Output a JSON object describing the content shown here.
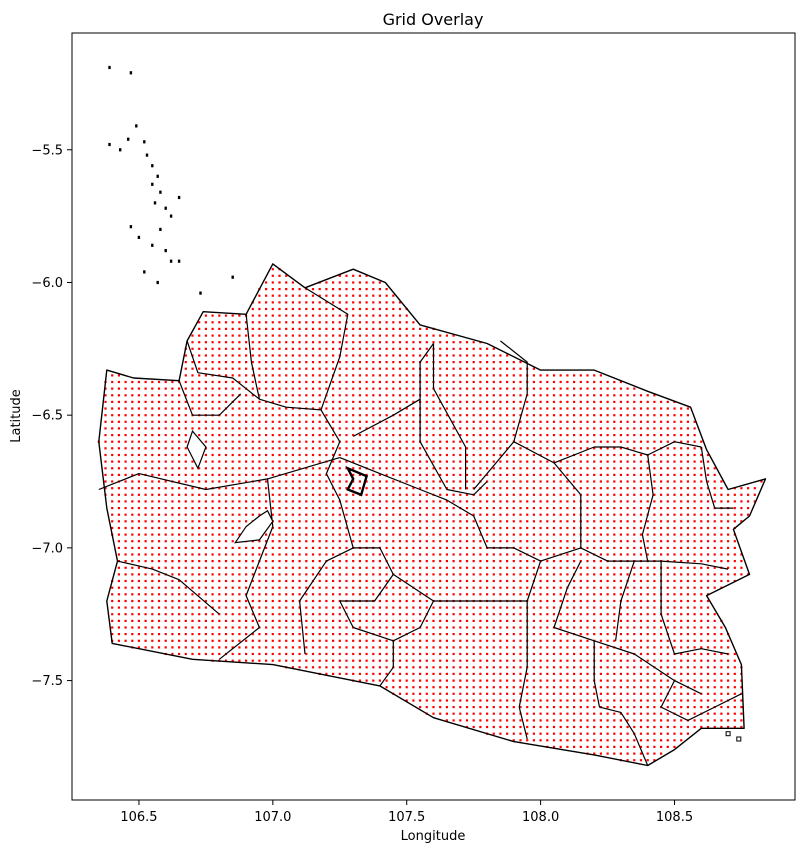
{
  "chart_data": {
    "type": "scatter",
    "title": "Grid Overlay",
    "xlabel": "Longitude",
    "ylabel": "Latitude",
    "xlim": [
      106.25,
      108.95
    ],
    "ylim": [
      -7.95,
      -5.06
    ],
    "xticks": [
      106.5,
      107.0,
      107.5,
      108.0,
      108.5
    ],
    "xtick_labels": [
      "106.5",
      "107.0",
      "107.5",
      "108.0",
      "108.5"
    ],
    "yticks": [
      -5.5,
      -6.0,
      -6.5,
      -7.0,
      -7.5
    ],
    "ytick_labels": [
      "−5.5",
      "−6.0",
      "−6.5",
      "−7.0",
      "−7.5"
    ],
    "grid": false,
    "grid_spacing_deg": 0.025,
    "point_color": "#ff0000",
    "boundary_color": "#000000",
    "outline": [
      [
        106.38,
        -6.33
      ],
      [
        106.48,
        -6.36
      ],
      [
        106.65,
        -6.37
      ],
      [
        106.68,
        -6.22
      ],
      [
        106.74,
        -6.11
      ],
      [
        106.9,
        -6.12
      ],
      [
        107.0,
        -5.93
      ],
      [
        107.12,
        -6.02
      ],
      [
        107.3,
        -5.95
      ],
      [
        107.42,
        -6.0
      ],
      [
        107.55,
        -6.16
      ],
      [
        107.8,
        -6.23
      ],
      [
        108.0,
        -6.33
      ],
      [
        108.2,
        -6.33
      ],
      [
        108.4,
        -6.41
      ],
      [
        108.56,
        -6.47
      ],
      [
        108.62,
        -6.63
      ],
      [
        108.7,
        -6.78
      ],
      [
        108.84,
        -6.74
      ],
      [
        108.78,
        -6.88
      ],
      [
        108.72,
        -6.93
      ],
      [
        108.78,
        -7.1
      ],
      [
        108.62,
        -7.18
      ],
      [
        108.69,
        -7.3
      ],
      [
        108.75,
        -7.44
      ],
      [
        108.76,
        -7.68
      ],
      [
        108.6,
        -7.68
      ],
      [
        108.5,
        -7.76
      ],
      [
        108.4,
        -7.82
      ],
      [
        108.2,
        -7.78
      ],
      [
        107.9,
        -7.73
      ],
      [
        107.6,
        -7.64
      ],
      [
        107.4,
        -7.52
      ],
      [
        107.0,
        -7.44
      ],
      [
        106.7,
        -7.42
      ],
      [
        106.4,
        -7.36
      ],
      [
        106.38,
        -7.2
      ],
      [
        106.42,
        -7.05
      ],
      [
        106.38,
        -6.85
      ],
      [
        106.35,
        -6.6
      ],
      [
        106.38,
        -6.33
      ]
    ],
    "regions": [
      [
        [
          106.68,
          -6.22
        ],
        [
          106.72,
          -6.34
        ],
        [
          106.85,
          -6.36
        ],
        [
          106.95,
          -6.44
        ],
        [
          107.05,
          -6.47
        ]
      ],
      [
        [
          106.65,
          -6.37
        ],
        [
          106.7,
          -6.5
        ],
        [
          106.8,
          -6.5
        ],
        [
          106.88,
          -6.42
        ]
      ],
      [
        [
          106.9,
          -6.12
        ],
        [
          106.92,
          -6.3
        ],
        [
          106.95,
          -6.44
        ]
      ],
      [
        [
          107.12,
          -6.02
        ],
        [
          107.28,
          -6.12
        ],
        [
          107.25,
          -6.28
        ],
        [
          107.18,
          -6.48
        ],
        [
          107.05,
          -6.47
        ]
      ],
      [
        [
          107.18,
          -6.48
        ],
        [
          107.25,
          -6.6
        ],
        [
          107.2,
          -6.72
        ],
        [
          107.25,
          -6.82
        ],
        [
          107.3,
          -7.0
        ],
        [
          107.2,
          -7.05
        ],
        [
          107.1,
          -7.2
        ],
        [
          107.12,
          -7.4
        ]
      ],
      [
        [
          106.35,
          -6.78
        ],
        [
          106.5,
          -6.72
        ],
        [
          106.75,
          -6.78
        ],
        [
          106.98,
          -6.74
        ],
        [
          107.25,
          -6.66
        ]
      ],
      [
        [
          106.98,
          -6.74
        ],
        [
          107.0,
          -6.92
        ],
        [
          106.95,
          -7.05
        ],
        [
          106.9,
          -7.18
        ],
        [
          106.95,
          -7.3
        ],
        [
          106.8,
          -7.42
        ]
      ],
      [
        [
          106.42,
          -7.05
        ],
        [
          106.55,
          -7.08
        ],
        [
          106.65,
          -7.12
        ],
        [
          106.8,
          -7.25
        ]
      ],
      [
        [
          107.3,
          -6.58
        ],
        [
          107.45,
          -6.5
        ],
        [
          107.55,
          -6.44
        ],
        [
          107.55,
          -6.3
        ],
        [
          107.6,
          -6.23
        ]
      ],
      [
        [
          107.25,
          -6.66
        ],
        [
          107.4,
          -6.72
        ],
        [
          107.55,
          -6.78
        ],
        [
          107.65,
          -6.82
        ],
        [
          107.75,
          -6.88
        ],
        [
          107.8,
          -7.0
        ]
      ],
      [
        [
          107.55,
          -6.44
        ],
        [
          107.55,
          -6.6
        ],
        [
          107.65,
          -6.78
        ],
        [
          107.75,
          -6.8
        ],
        [
          107.8,
          -6.75
        ]
      ],
      [
        [
          107.6,
          -6.23
        ],
        [
          107.6,
          -6.4
        ],
        [
          107.72,
          -6.62
        ],
        [
          107.72,
          -6.78
        ]
      ],
      [
        [
          107.85,
          -6.22
        ],
        [
          107.95,
          -6.3
        ],
        [
          107.95,
          -6.42
        ],
        [
          107.9,
          -6.6
        ],
        [
          107.75,
          -6.78
        ]
      ],
      [
        [
          107.9,
          -6.6
        ],
        [
          108.05,
          -6.68
        ],
        [
          108.2,
          -6.62
        ],
        [
          108.3,
          -6.62
        ],
        [
          108.4,
          -6.65
        ],
        [
          108.5,
          -6.6
        ],
        [
          108.6,
          -6.62
        ]
      ],
      [
        [
          108.05,
          -6.68
        ],
        [
          108.15,
          -6.8
        ],
        [
          108.15,
          -7.0
        ],
        [
          108.25,
          -7.05
        ],
        [
          108.35,
          -7.05
        ],
        [
          108.45,
          -7.05
        ],
        [
          108.6,
          -7.06
        ],
        [
          108.7,
          -7.08
        ]
      ],
      [
        [
          108.4,
          -6.65
        ],
        [
          108.42,
          -6.8
        ],
        [
          108.38,
          -6.95
        ],
        [
          108.4,
          -7.05
        ]
      ],
      [
        [
          108.6,
          -6.62
        ],
        [
          108.62,
          -6.75
        ],
        [
          108.65,
          -6.85
        ],
        [
          108.72,
          -6.85
        ]
      ],
      [
        [
          107.8,
          -7.0
        ],
        [
          107.9,
          -7.0
        ],
        [
          108.0,
          -7.05
        ],
        [
          108.15,
          -7.0
        ]
      ],
      [
        [
          108.0,
          -7.05
        ],
        [
          107.95,
          -7.2
        ],
        [
          107.95,
          -7.3
        ],
        [
          107.95,
          -7.45
        ],
        [
          107.92,
          -7.6
        ],
        [
          107.95,
          -7.72
        ]
      ],
      [
        [
          107.45,
          -7.1
        ],
        [
          107.6,
          -7.2
        ],
        [
          107.8,
          -7.2
        ],
        [
          107.95,
          -7.2
        ]
      ],
      [
        [
          107.3,
          -7.0
        ],
        [
          107.4,
          -7.0
        ],
        [
          107.45,
          -7.1
        ],
        [
          107.38,
          -7.2
        ],
        [
          107.25,
          -7.2
        ]
      ],
      [
        [
          107.25,
          -7.2
        ],
        [
          107.3,
          -7.3
        ],
        [
          107.45,
          -7.35
        ],
        [
          107.55,
          -7.3
        ],
        [
          107.6,
          -7.2
        ]
      ],
      [
        [
          107.45,
          -7.35
        ],
        [
          107.45,
          -7.45
        ],
        [
          107.4,
          -7.52
        ]
      ],
      [
        [
          108.15,
          -7.05
        ],
        [
          108.1,
          -7.15
        ],
        [
          108.05,
          -7.3
        ],
        [
          108.2,
          -7.35
        ],
        [
          108.35,
          -7.4
        ],
        [
          108.5,
          -7.5
        ],
        [
          108.6,
          -7.55
        ]
      ],
      [
        [
          108.2,
          -7.35
        ],
        [
          108.2,
          -7.5
        ],
        [
          108.22,
          -7.6
        ],
        [
          108.3,
          -7.62
        ],
        [
          108.35,
          -7.7
        ],
        [
          108.4,
          -7.82
        ]
      ],
      [
        [
          108.45,
          -7.05
        ],
        [
          108.45,
          -7.25
        ],
        [
          108.5,
          -7.4
        ],
        [
          108.6,
          -7.38
        ],
        [
          108.7,
          -7.4
        ]
      ],
      [
        [
          108.35,
          -7.05
        ],
        [
          108.3,
          -7.2
        ],
        [
          108.28,
          -7.35
        ]
      ],
      [
        [
          108.5,
          -7.5
        ],
        [
          108.45,
          -7.6
        ],
        [
          108.55,
          -7.65
        ],
        [
          108.65,
          -7.6
        ],
        [
          108.75,
          -7.55
        ]
      ]
    ],
    "inlets": [
      [
        [
          106.98,
          -6.86
        ],
        [
          107.0,
          -6.9
        ],
        [
          106.95,
          -6.97
        ],
        [
          106.86,
          -6.98
        ],
        [
          106.9,
          -6.92
        ],
        [
          106.95,
          -6.88
        ]
      ],
      [
        [
          106.7,
          -6.56
        ],
        [
          106.75,
          -6.62
        ],
        [
          106.72,
          -6.7
        ],
        [
          106.68,
          -6.62
        ]
      ]
    ],
    "city": [
      [
        107.28,
        -6.7
      ],
      [
        107.35,
        -6.73
      ],
      [
        107.33,
        -6.8
      ],
      [
        107.28,
        -6.78
      ],
      [
        107.3,
        -6.74
      ]
    ],
    "islands": [
      [
        106.39,
        -5.19
      ],
      [
        106.47,
        -5.21
      ],
      [
        106.49,
        -5.41
      ],
      [
        106.39,
        -5.48
      ],
      [
        106.43,
        -5.5
      ],
      [
        106.46,
        -5.46
      ],
      [
        106.52,
        -5.47
      ],
      [
        106.53,
        -5.52
      ],
      [
        106.55,
        -5.56
      ],
      [
        106.57,
        -5.6
      ],
      [
        106.55,
        -5.63
      ],
      [
        106.58,
        -5.66
      ],
      [
        106.56,
        -5.7
      ],
      [
        106.6,
        -5.72
      ],
      [
        106.62,
        -5.75
      ],
      [
        106.58,
        -5.8
      ],
      [
        106.5,
        -5.83
      ],
      [
        106.55,
        -5.86
      ],
      [
        106.6,
        -5.88
      ],
      [
        106.65,
        -5.92
      ],
      [
        106.52,
        -5.96
      ],
      [
        106.57,
        -6.0
      ],
      [
        106.73,
        -6.04
      ],
      [
        106.85,
        -5.98
      ],
      [
        106.65,
        -5.68
      ],
      [
        106.47,
        -5.79
      ],
      [
        106.62,
        -5.92
      ]
    ],
    "islets": [
      [
        108.7,
        -7.7
      ],
      [
        108.74,
        -7.72
      ]
    ]
  }
}
